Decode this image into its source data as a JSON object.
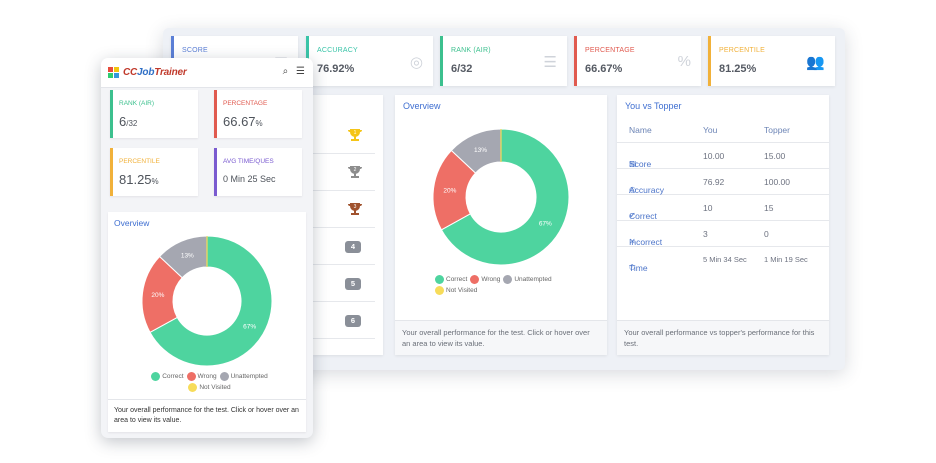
{
  "desktop": {
    "stats": [
      {
        "label": "SCORE",
        "value": "",
        "color": "#5b7fd6",
        "icon": "clipboard-icon"
      },
      {
        "label": "ACCURACY",
        "value": "76.92%",
        "color": "#39c4a8",
        "icon": "target-icon"
      },
      {
        "label": "RANK (AIR)",
        "value": "6/32",
        "color": "#3cc08e",
        "icon": "list-icon"
      },
      {
        "label": "PERCENTAGE",
        "value": "66.67%",
        "color": "#e05a4f",
        "icon": "percent-icon"
      },
      {
        "label": "PERCENTILE",
        "value": "81.25%",
        "color": "#f1b13a",
        "icon": "users-icon"
      }
    ],
    "rank_badges": [
      "4",
      "5",
      "6"
    ],
    "overview": {
      "title": "Overview",
      "footer": "Your overall performance for the test. Click or hover over an area to view its value."
    },
    "topper": {
      "title": "You vs Topper",
      "headers": [
        "Name",
        "You",
        "Topper"
      ],
      "rows": [
        {
          "icon": "clipboard-icon",
          "name": "Score",
          "you": "10.00",
          "topper": "15.00"
        },
        {
          "icon": "target-icon",
          "name": "Accuracy",
          "you": "76.92",
          "topper": "100.00"
        },
        {
          "icon": "check-icon",
          "name": "Correct",
          "you": "10",
          "topper": "15"
        },
        {
          "icon": "cross-icon",
          "name": "Incorrect",
          "you": "3",
          "topper": "0"
        },
        {
          "icon": "timer-icon",
          "name": "Time",
          "you": "5 Min 34 Sec",
          "topper": "1 Min 19 Sec"
        }
      ],
      "footer": "Your overall performance vs topper's performance for this test."
    }
  },
  "mobile": {
    "brand": {
      "part1": "CC",
      "part2": "Job",
      "part3": "Trainer"
    },
    "stats": [
      {
        "label": "RANK (AIR)",
        "value": "6",
        "suffix": "/32",
        "color": "#3cc08e"
      },
      {
        "label": "PERCENTAGE",
        "value": "66.67",
        "suffix": "%",
        "color": "#e05a4f"
      },
      {
        "label": "PERCENTILE",
        "value": "81.25",
        "suffix": "%",
        "color": "#f1b13a"
      },
      {
        "label": "AVG TIME/QUES",
        "value": "0 Min 25 Sec",
        "suffix": "",
        "color": "#7a5bd0"
      }
    ],
    "overview": {
      "title": "Overview",
      "footer": "Your overall performance for the test. Click or hover over an area to view its value."
    }
  },
  "chart_data": {
    "type": "pie",
    "categories": [
      "Correct",
      "Wrong",
      "Unattempted",
      "Not Visited"
    ],
    "values": [
      67,
      20,
      13,
      0
    ],
    "labels": [
      "67%",
      "20%",
      "13%",
      ""
    ],
    "colors": [
      "#4ed49f",
      "#ee6f66",
      "#a5a7b1",
      "#f7dc5a"
    ],
    "donut": true
  }
}
